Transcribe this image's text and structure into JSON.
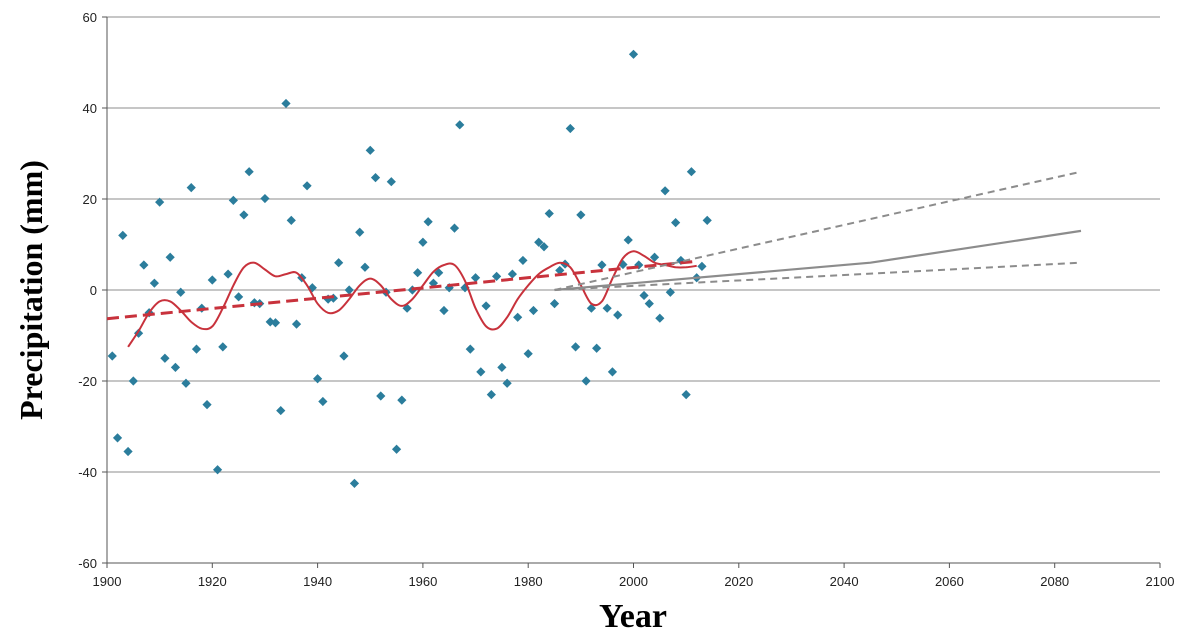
{
  "chart_data": {
    "type": "scatter",
    "title": "",
    "xlabel": "Year",
    "ylabel": "Precipitation (mm)",
    "xlim": [
      1900,
      2100
    ],
    "ylim": [
      -60,
      60
    ],
    "x_ticks": [
      1900,
      1920,
      1940,
      1960,
      1980,
      2000,
      2020,
      2040,
      2060,
      2080,
      2100
    ],
    "y_ticks": [
      -60,
      -40,
      -20,
      0,
      20,
      40,
      60
    ],
    "grid": "horizontal",
    "legend": "none",
    "colors": {
      "points": "#2b7d9c",
      "smooth": "#c8323c",
      "trend": "#c8323c",
      "projection": "#8c8c8c",
      "grid": "#8c8c8c"
    },
    "series": [
      {
        "style": "scatter",
        "x": [
          1901,
          1902,
          1903,
          1904,
          1905,
          1906,
          1907,
          1908,
          1909,
          1910,
          1911,
          1912,
          1913,
          1914,
          1915,
          1916,
          1917,
          1918,
          1919,
          1920,
          1921,
          1922,
          1923,
          1924,
          1925,
          1926,
          1927,
          1928,
          1929,
          1930,
          1931,
          1932,
          1933,
          1934,
          1935,
          1936,
          1937,
          1938,
          1939,
          1940,
          1941,
          1942,
          1943,
          1944,
          1945,
          1946,
          1947,
          1948,
          1949,
          1950,
          1951,
          1952,
          1953,
          1954,
          1955,
          1956,
          1957,
          1958,
          1959,
          1960,
          1961,
          1962,
          1963,
          1964,
          1965,
          1966,
          1967,
          1968,
          1969,
          1970,
          1971,
          1972,
          1973,
          1974,
          1975,
          1976,
          1977,
          1978,
          1979,
          1980,
          1981,
          1982,
          1983,
          1984,
          1985,
          1986,
          1987,
          1988,
          1989,
          1990,
          1991,
          1992,
          1993,
          1994,
          1995,
          1996,
          1997,
          1998,
          1999,
          2000,
          2001,
          2002,
          2003,
          2004,
          2005,
          2006,
          2007,
          2008,
          2009,
          2010,
          2011,
          2012,
          2013,
          2014
        ],
        "y": [
          -14.5,
          -32.5,
          12,
          -35.5,
          -20,
          -9.5,
          5.5,
          -5,
          1.5,
          19.3,
          -15,
          7.2,
          -17,
          -0.5,
          -20.5,
          22.5,
          -13,
          -4,
          -25.2,
          2.2,
          -39.5,
          -12.5,
          3.5,
          19.7,
          -1.5,
          16.5,
          26,
          -2.8,
          -3,
          20.1,
          -7,
          -7.2,
          -26.5,
          41,
          15.3,
          -7.5,
          2.7,
          22.9,
          0.5,
          -19.5,
          -24.5,
          -2,
          -1.8,
          6,
          -14.5,
          0,
          -42.5,
          12.7,
          5,
          30.7,
          24.7,
          -23.3,
          -0.5,
          23.8,
          -35,
          -24.2,
          -4,
          0,
          3.8,
          10.5,
          15,
          1.5,
          3.8,
          -4.5,
          0.5,
          13.6,
          36.3,
          0.5,
          -13,
          2.7,
          -18,
          -3.5,
          -23,
          3,
          -17,
          -20.5,
          3.5,
          -6,
          6.5,
          -14,
          -4.5,
          10.5,
          9.5,
          16.8,
          -3,
          4.3,
          5.7,
          35.5,
          -12.5,
          16.5,
          -20,
          -4,
          -12.8,
          5.5,
          -4,
          -18,
          -5.5,
          5.6,
          11,
          51.8,
          5.5,
          -1.2,
          -3,
          7.2,
          -6.2,
          21.8,
          -0.5,
          14.8,
          6.5,
          -23,
          26,
          2.7,
          5.2,
          15.3
        ]
      },
      {
        "style": "smoothed-line",
        "x": [
          1904,
          1906,
          1908,
          1910,
          1912,
          1914,
          1916,
          1918,
          1920,
          1922,
          1924,
          1926,
          1928,
          1930,
          1932,
          1934,
          1936,
          1938,
          1940,
          1942,
          1944,
          1946,
          1948,
          1950,
          1952,
          1954,
          1956,
          1958,
          1960,
          1962,
          1964,
          1966,
          1968,
          1970,
          1972,
          1974,
          1976,
          1978,
          1980,
          1982,
          1984,
          1986,
          1988,
          1990,
          1992,
          1994,
          1996,
          1998,
          2000,
          2002,
          2004,
          2006,
          2008,
          2010,
          2012
        ],
        "y": [
          -12.5,
          -9,
          -5,
          -2.5,
          -2.5,
          -4.5,
          -7,
          -8.5,
          -8,
          -4,
          1,
          5,
          6,
          4.5,
          3,
          3.5,
          3.8,
          1,
          -3,
          -5,
          -4.5,
          -2,
          1,
          2.5,
          1,
          -2,
          -3.5,
          -2,
          1,
          4,
          5.5,
          5.5,
          2,
          -4,
          -8,
          -8.5,
          -6,
          -2,
          1,
          3.5,
          5,
          6,
          5,
          1,
          -3,
          -2.5,
          2.5,
          7,
          8.5,
          7.5,
          6,
          5.5,
          5,
          5,
          5.3
        ]
      },
      {
        "style": "dashed-trend",
        "x": [
          1900,
          2012
        ],
        "y": [
          -6.3,
          6.3
        ]
      },
      {
        "style": "projection-line",
        "x": [
          1985,
          2045,
          2085
        ],
        "y": [
          0,
          6,
          13
        ]
      },
      {
        "style": "projection-upper-dashed",
        "x": [
          1985,
          2085
        ],
        "y": [
          0,
          26
        ]
      },
      {
        "style": "projection-lower-dashed",
        "x": [
          1985,
          2085
        ],
        "y": [
          0,
          6
        ]
      }
    ]
  }
}
